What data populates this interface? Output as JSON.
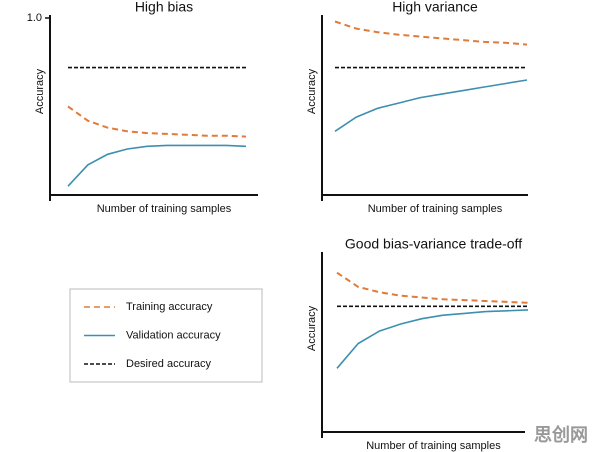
{
  "chart_data": [
    {
      "type": "line",
      "title": "High bias",
      "xlabel": "Number of training samples",
      "ylabel": "Accuracy",
      "categories": [
        null,
        null,
        null,
        null,
        null,
        null,
        null,
        null,
        null,
        null
      ],
      "ylim": [
        0,
        1
      ],
      "yticks": [
        {
          "value": 1,
          "label": "1.0"
        }
      ],
      "series": [
        {
          "name": "Training accuracy",
          "color": "#e07b39",
          "dash": true,
          "values": [
            0.5,
            0.42,
            0.38,
            0.36,
            0.35,
            0.345,
            0.34,
            0.335,
            0.335,
            0.33
          ]
        },
        {
          "name": "Validation accuracy",
          "color": "#3d8fb0",
          "dash": false,
          "values": [
            0.05,
            0.17,
            0.23,
            0.26,
            0.275,
            0.28,
            0.28,
            0.28,
            0.28,
            0.275
          ]
        },
        {
          "name": "Desired accuracy",
          "color": "#111111",
          "dash": true,
          "values": [
            0.72,
            0.72,
            0.72,
            0.72,
            0.72,
            0.72,
            0.72,
            0.72,
            0.72,
            0.72
          ]
        }
      ]
    },
    {
      "type": "line",
      "title": "High variance",
      "xlabel": "Number of training samples",
      "ylabel": "Accuracy",
      "categories": [
        null,
        null,
        null,
        null,
        null,
        null,
        null,
        null,
        null,
        null
      ],
      "ylim": [
        0,
        1
      ],
      "series": [
        {
          "name": "Training accuracy",
          "color": "#e07b39",
          "dash": true,
          "values": [
            0.98,
            0.94,
            0.92,
            0.905,
            0.895,
            0.885,
            0.875,
            0.865,
            0.86,
            0.85
          ]
        },
        {
          "name": "Validation accuracy",
          "color": "#3d8fb0",
          "dash": false,
          "values": [
            0.36,
            0.44,
            0.49,
            0.52,
            0.55,
            0.57,
            0.59,
            0.61,
            0.63,
            0.65
          ]
        },
        {
          "name": "Desired accuracy",
          "color": "#111111",
          "dash": true,
          "values": [
            0.72,
            0.72,
            0.72,
            0.72,
            0.72,
            0.72,
            0.72,
            0.72,
            0.72,
            0.72
          ]
        }
      ]
    },
    {
      "type": "line",
      "title": "Good bias-variance trade-off",
      "xlabel": "Number of training samples",
      "ylabel": "Accuracy",
      "categories": [
        null,
        null,
        null,
        null,
        null,
        null,
        null,
        null,
        null,
        null
      ],
      "ylim": [
        0,
        1
      ],
      "series": [
        {
          "name": "Training accuracy",
          "color": "#e07b39",
          "dash": true,
          "values": [
            0.9,
            0.82,
            0.79,
            0.77,
            0.76,
            0.75,
            0.745,
            0.74,
            0.735,
            0.73
          ]
        },
        {
          "name": "Validation accuracy",
          "color": "#3d8fb0",
          "dash": false,
          "values": [
            0.36,
            0.5,
            0.57,
            0.61,
            0.64,
            0.66,
            0.67,
            0.68,
            0.685,
            0.69
          ]
        },
        {
          "name": "Desired accuracy",
          "color": "#111111",
          "dash": true,
          "values": [
            0.71,
            0.71,
            0.71,
            0.71,
            0.71,
            0.71,
            0.71,
            0.71,
            0.71,
            0.71
          ]
        }
      ]
    }
  ],
  "watermark": "思创网"
}
